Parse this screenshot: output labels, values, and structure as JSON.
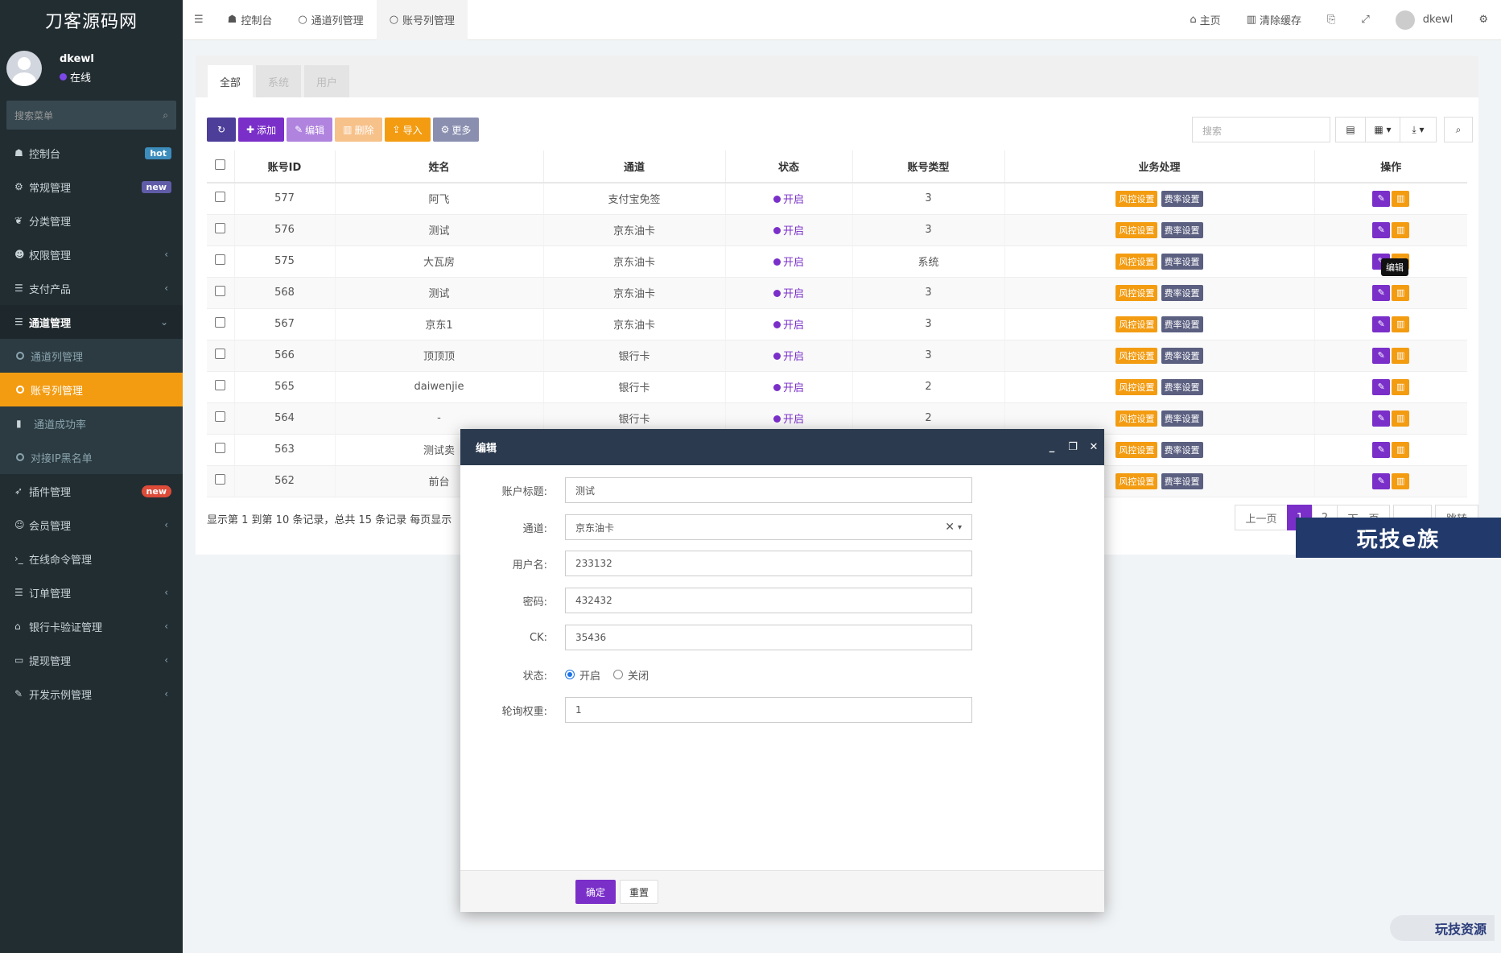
{
  "sidebar": {
    "logo": "刀客源码网",
    "user": {
      "name": "dkewl",
      "status": "在线"
    },
    "search_placeholder": "搜索菜单",
    "items": [
      {
        "icon": "dashboard-icon",
        "glyph": "☗",
        "label": "控制台",
        "badge": "hot"
      },
      {
        "icon": "cogs-icon",
        "glyph": "⚙",
        "label": "常规管理",
        "badge": "new"
      },
      {
        "icon": "leaf-icon",
        "glyph": "❦",
        "label": "分类管理"
      },
      {
        "icon": "group-icon",
        "glyph": "☻",
        "label": "权限管理",
        "arrow": "‹"
      },
      {
        "icon": "list-icon",
        "glyph": "☰",
        "label": "支付产品",
        "arrow": "‹"
      },
      {
        "icon": "list-icon",
        "glyph": "☰",
        "label": "通道管理",
        "arrow": "⌄"
      },
      {
        "icon": "circle-icon",
        "label": "通道列管理",
        "sub": true
      },
      {
        "icon": "circle-icon",
        "label": "账号列管理",
        "sub": true,
        "current": true
      },
      {
        "icon": "bar-chart-icon",
        "glyph": "▮",
        "label": "通道成功率",
        "sub": true
      },
      {
        "icon": "circle-icon",
        "label": "对接IP黑名单",
        "sub": true
      },
      {
        "icon": "rocket-icon",
        "glyph": "➶",
        "label": "插件管理",
        "badge": "new"
      },
      {
        "icon": "user-circle-icon",
        "glyph": "☺",
        "label": "会员管理",
        "arrow": "‹"
      },
      {
        "icon": "terminal-icon",
        "glyph": "›_",
        "label": "在线命令管理"
      },
      {
        "icon": "list-icon",
        "glyph": "☰",
        "label": "订单管理",
        "arrow": "‹"
      },
      {
        "icon": "bank-icon",
        "glyph": "⌂",
        "label": "银行卡验证管理",
        "arrow": "‹"
      },
      {
        "icon": "visa-icon",
        "glyph": "▭",
        "label": "提现管理",
        "arrow": "‹"
      },
      {
        "icon": "magic-icon",
        "glyph": "✎",
        "label": "开发示例管理",
        "arrow": "‹"
      }
    ]
  },
  "topbar": {
    "tabs": [
      {
        "label": "控制台",
        "icon": "dashboard-icon",
        "glyph": "☗"
      },
      {
        "label": "通道列管理",
        "icon": "circle-icon",
        "glyph": "○"
      },
      {
        "label": "账号列管理",
        "icon": "circle-icon",
        "glyph": "○"
      }
    ],
    "home": "主页",
    "clear_cache": "清除缓存",
    "user": "dkewl"
  },
  "filter_tabs": [
    "全部",
    "系统",
    "用户"
  ],
  "toolbar": {
    "add": "添加",
    "edit": "编辑",
    "delete": "删除",
    "import": "导入",
    "more": "更多",
    "search_placeholder": "搜索"
  },
  "table": {
    "headers": [
      "账号ID",
      "姓名",
      "通道",
      "状态",
      "账号类型",
      "业务处理",
      "操作"
    ],
    "risk_label": "风控设置",
    "rate_label": "费率设置",
    "rows": [
      {
        "id": "577",
        "name": "阿飞",
        "channel": "支付宝免签",
        "status": "开启",
        "type": "3"
      },
      {
        "id": "576",
        "name": "测试",
        "channel": "京东油卡",
        "status": "开启",
        "type": "3"
      },
      {
        "id": "575",
        "name": "大瓦房",
        "channel": "京东油卡",
        "status": "开启",
        "type": "系统"
      },
      {
        "id": "568",
        "name": "测试",
        "channel": "京东油卡",
        "status": "开启",
        "type": "3"
      },
      {
        "id": "567",
        "name": "京东1",
        "channel": "京东油卡",
        "status": "开启",
        "type": "3"
      },
      {
        "id": "566",
        "name": "顶顶顶",
        "channel": "银行卡",
        "status": "开启",
        "type": "3"
      },
      {
        "id": "565",
        "name": "daiwenjie",
        "channel": "银行卡",
        "status": "开启",
        "type": "2"
      },
      {
        "id": "564",
        "name": "-",
        "channel": "银行卡",
        "status": "开启",
        "type": "2"
      },
      {
        "id": "563",
        "name": "测试卖",
        "channel": "",
        "status": "",
        "type": ""
      },
      {
        "id": "562",
        "name": "前台",
        "channel": "",
        "status": "",
        "type": ""
      }
    ],
    "tooltip": "编辑"
  },
  "pagination": {
    "info": "显示第 1 到第 10 条记录，总共 15 条记录 每页显示",
    "prev": "上一页",
    "pages": [
      "1",
      "2"
    ],
    "next": "下一页",
    "jump": "跳转"
  },
  "watermark": "玩技e族",
  "watermark2": "玩技资源",
  "modal": {
    "title": "编辑",
    "fields": {
      "title_label": "账户标题:",
      "title_value": "测试",
      "channel_label": "通道:",
      "channel_value": "京东油卡",
      "username_label": "用户名:",
      "username_value": "233132",
      "password_label": "密码:",
      "password_value": "432432",
      "ck_label": "CK:",
      "ck_value": "35436",
      "status_label": "状态:",
      "status_on": "开启",
      "status_off": "关闭",
      "weight_label": "轮询权重:",
      "weight_value": "1"
    },
    "ok": "确定",
    "reset": "重置"
  }
}
